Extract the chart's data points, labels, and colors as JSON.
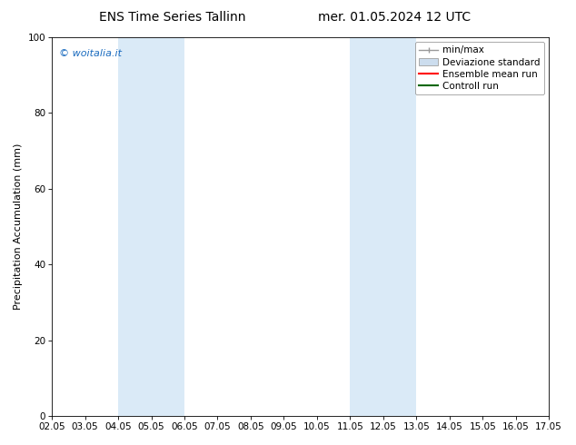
{
  "title_left": "ENS Time Series Tallinn",
  "title_right": "mer. 01.05.2024 12 UTC",
  "ylabel": "Precipitation Accumulation (mm)",
  "ylim": [
    0,
    100
  ],
  "yticks": [
    0,
    20,
    40,
    60,
    80,
    100
  ],
  "watermark": "© woitalia.it",
  "watermark_color": "#1a6bbf",
  "background_color": "#ffffff",
  "plot_bg_color": "#ffffff",
  "shaded_regions": [
    {
      "x_start": 4.05,
      "x_end": 6.05,
      "color": "#daeaf7"
    },
    {
      "x_start": 11.05,
      "x_end": 13.05,
      "color": "#daeaf7"
    }
  ],
  "x_start": 2.05,
  "x_end": 17.05,
  "xtick_labels": [
    "02.05",
    "03.05",
    "04.05",
    "05.05",
    "06.05",
    "07.05",
    "08.05",
    "09.05",
    "10.05",
    "11.05",
    "12.05",
    "13.05",
    "14.05",
    "15.05",
    "16.05",
    "17.05"
  ],
  "xtick_positions": [
    2.05,
    3.05,
    4.05,
    5.05,
    6.05,
    7.05,
    8.05,
    9.05,
    10.05,
    11.05,
    12.05,
    13.05,
    14.05,
    15.05,
    16.05,
    17.05
  ],
  "legend_entries": [
    {
      "label": "min/max",
      "color": "#999999",
      "type": "errbar"
    },
    {
      "label": "Deviazione standard",
      "color": "#ccddee",
      "type": "box"
    },
    {
      "label": "Ensemble mean run",
      "color": "#ff0000",
      "type": "line"
    },
    {
      "label": "Controll run",
      "color": "#006600",
      "type": "line"
    }
  ],
  "title_fontsize": 10,
  "tick_fontsize": 7.5,
  "legend_fontsize": 7.5,
  "ylabel_fontsize": 8,
  "watermark_fontsize": 8
}
